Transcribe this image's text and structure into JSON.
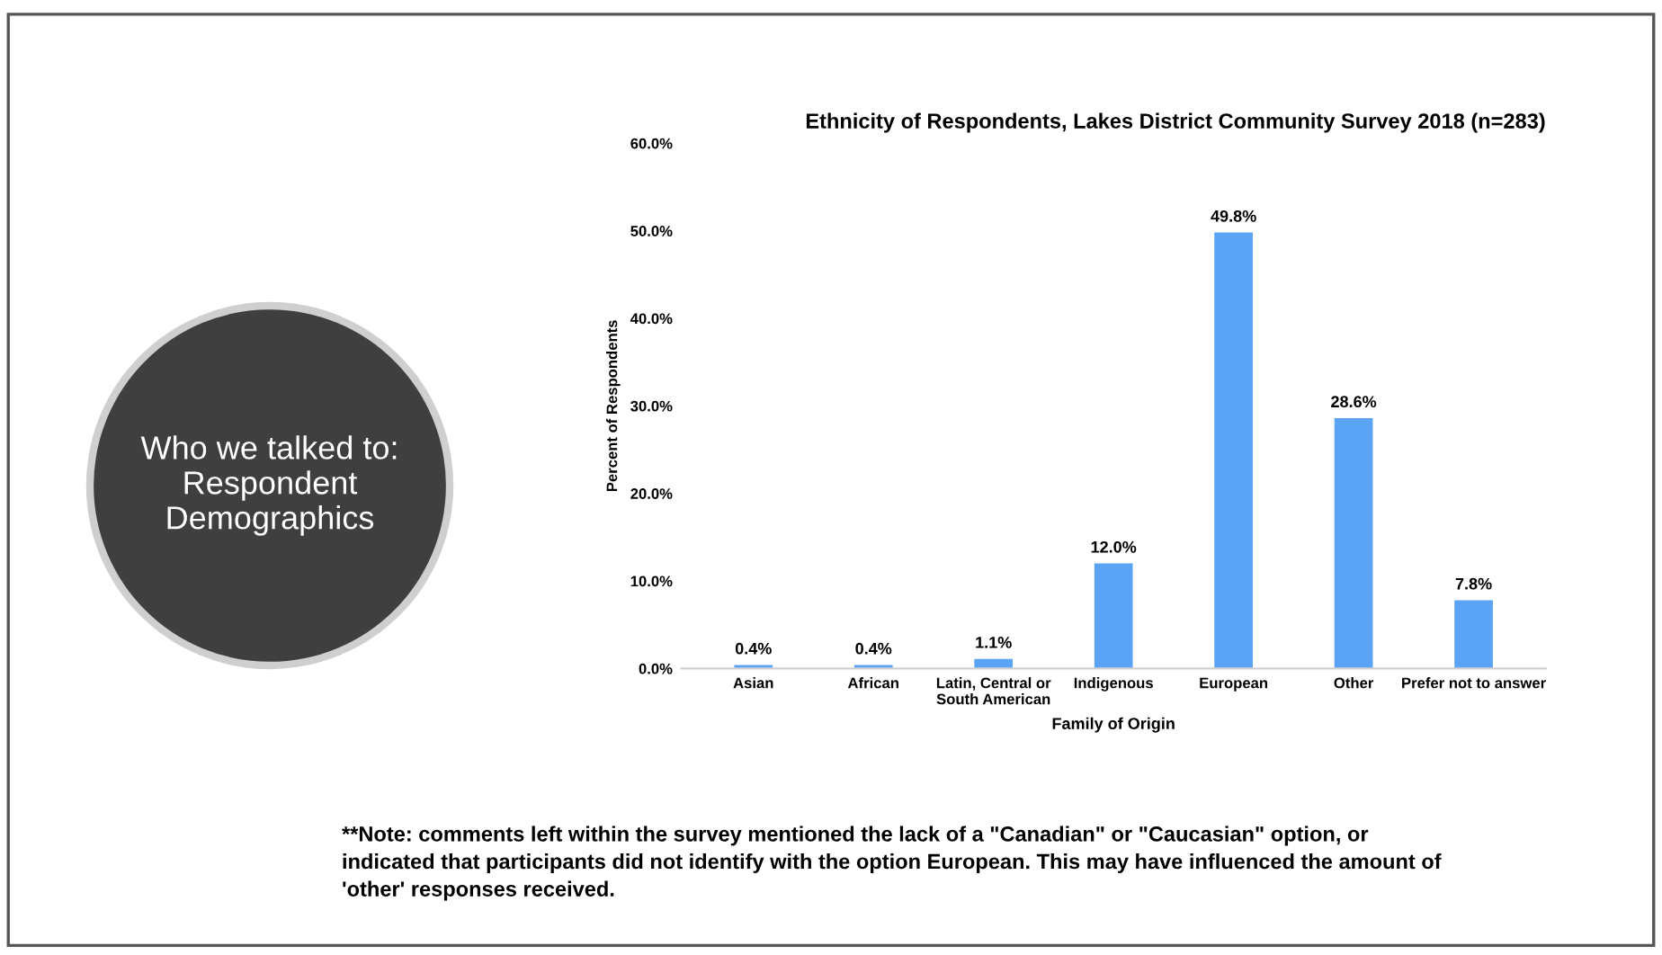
{
  "chart_data": {
    "type": "bar",
    "title": "Ethnicity of Respondents, Lakes District Community Survey 2018 (n=283)",
    "xlabel": "Family of Origin",
    "ylabel": "Percent of Respondents",
    "categories": [
      "Asian",
      "African",
      "Latin, Central or South American",
      "Indigenous",
      "European",
      "Other",
      "Prefer not to answer"
    ],
    "values": [
      0.4,
      0.4,
      1.1,
      12.0,
      49.8,
      28.6,
      7.8
    ],
    "value_labels": [
      "0.4%",
      "0.4%",
      "1.1%",
      "12.0%",
      "49.8%",
      "28.6%",
      "7.8%"
    ],
    "color": "#5ba3f5",
    "ylim": [
      0,
      60
    ],
    "yticks": [
      {
        "value": 0,
        "label": "0.0%"
      },
      {
        "value": 10,
        "label": "10.0%"
      },
      {
        "value": 20,
        "label": "20.0%"
      },
      {
        "value": 30,
        "label": "30.0%"
      },
      {
        "value": 40,
        "label": "40.0%"
      },
      {
        "value": 50,
        "label": "50.0%"
      },
      {
        "value": 60,
        "label": "60.0%"
      }
    ],
    "grid": false,
    "annotations": [
      "Who we talked to: Respondent Demographics",
      "**Note: comments left within the survey mentioned the lack of a \"Canadian\" or \"Caucasian\" option, or indicated that participants did not identify with the option European. This may have influenced the amount of 'other' responses received."
    ]
  }
}
